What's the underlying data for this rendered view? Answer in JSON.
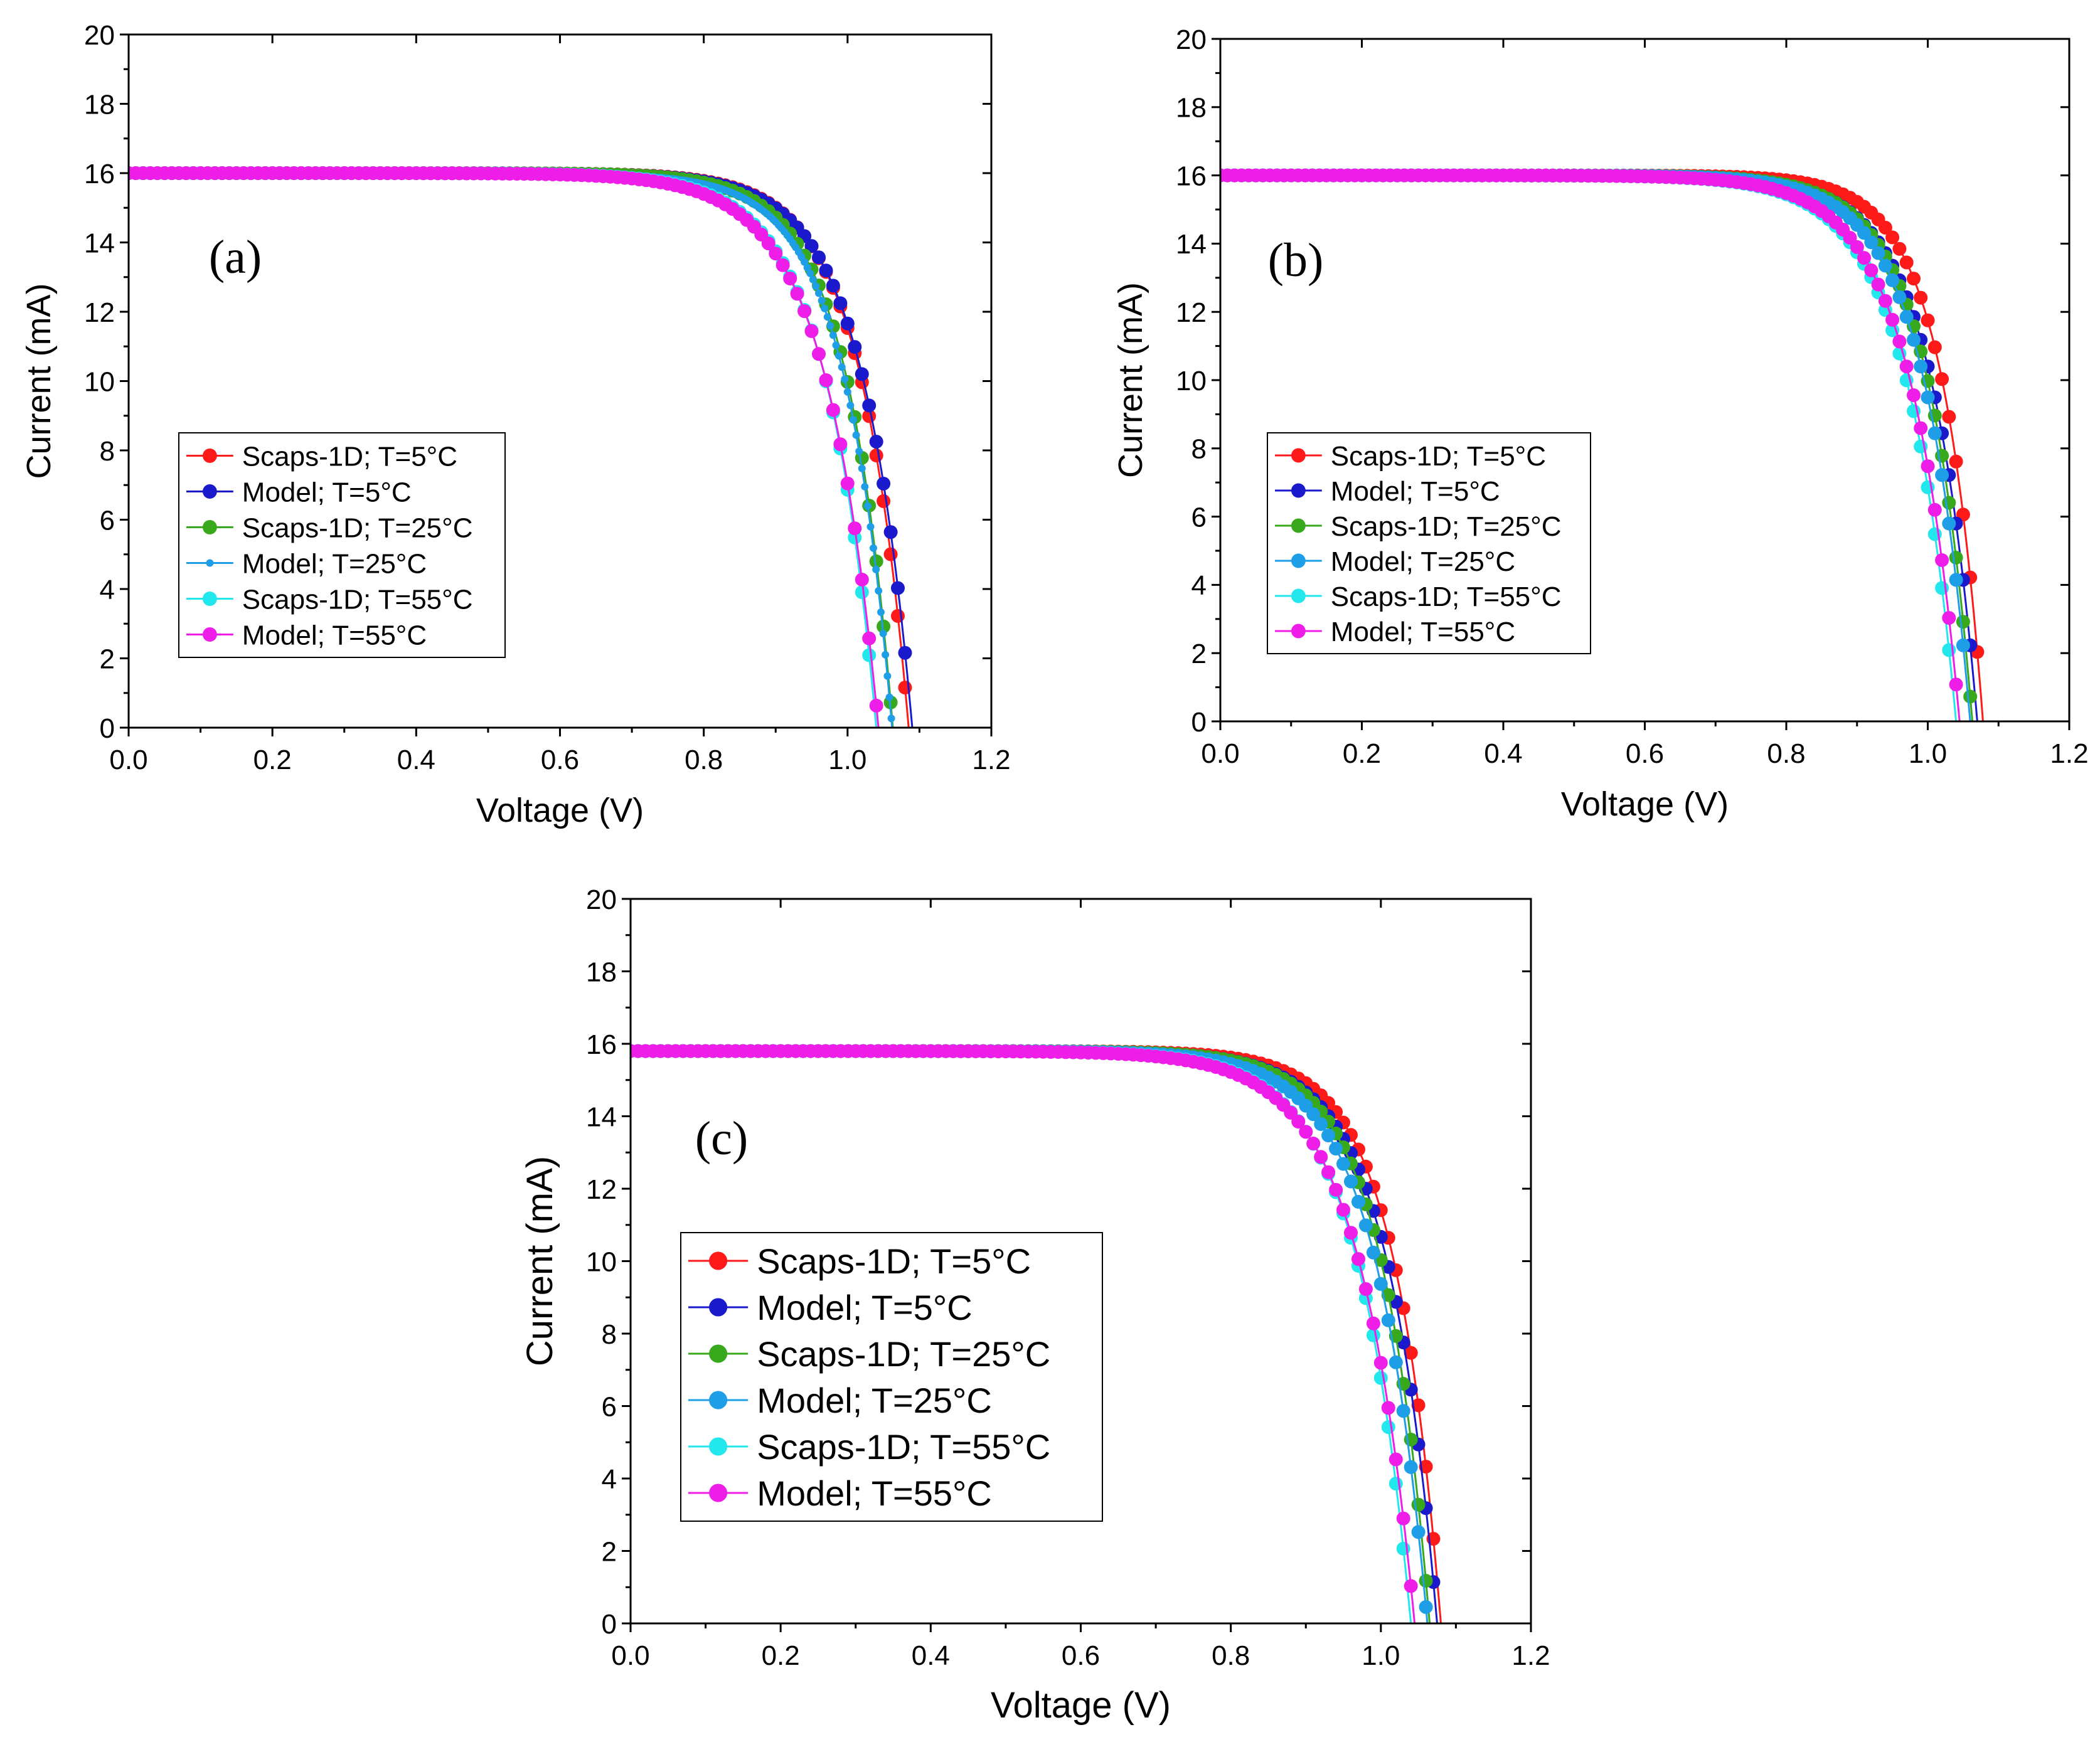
{
  "chart_data": [
    {
      "type": "line",
      "panel_label": "(a)",
      "xlabel": "Voltage (V)",
      "ylabel": "Current (mA)",
      "xlim": [
        0.0,
        1.2
      ],
      "ylim": [
        0,
        20
      ],
      "xticks": [
        "0.0",
        "0.2",
        "0.4",
        "0.6",
        "0.8",
        "1.0",
        "1.2"
      ],
      "yticks": [
        "0",
        "2",
        "4",
        "6",
        "8",
        "10",
        "12",
        "14",
        "16",
        "18",
        "20"
      ],
      "legend_position": "middle-left",
      "series": [
        {
          "name": "Scaps-1D; T=5°C",
          "color": "#ff1a1a",
          "marker": "large",
          "isc": 16.0,
          "voc": 1.085,
          "sharp": 15.0
        },
        {
          "name": "Model; T=5°C",
          "color": "#1a1acc",
          "marker": "large",
          "isc": 16.0,
          "voc": 1.09,
          "sharp": 14.5
        },
        {
          "name": "Scaps-1D; T=25°C",
          "color": "#38a81c",
          "marker": "large",
          "isc": 16.0,
          "voc": 1.063,
          "sharp": 15.5
        },
        {
          "name": "Model; T=25°C",
          "color": "#1e9ee6",
          "marker": "small",
          "isc": 16.0,
          "voc": 1.062,
          "sharp": 15.0
        },
        {
          "name": "Scaps-1D; T=55°C",
          "color": "#22e8ee",
          "marker": "large",
          "isc": 16.0,
          "voc": 1.04,
          "sharp": 14.0
        },
        {
          "name": "Model; T=55°C",
          "color": "#ee1ee8",
          "marker": "large",
          "isc": 16.0,
          "voc": 1.043,
          "sharp": 13.5
        }
      ]
    },
    {
      "type": "line",
      "panel_label": "(b)",
      "xlabel": "Voltage (V)",
      "ylabel": "Current (mA)",
      "xlim": [
        0.0,
        1.2
      ],
      "ylim": [
        0,
        20
      ],
      "xticks": [
        "0.0",
        "0.2",
        "0.4",
        "0.6",
        "0.8",
        "1.0",
        "1.2"
      ],
      "yticks": [
        "0",
        "2",
        "4",
        "6",
        "8",
        "10",
        "12",
        "14",
        "16",
        "18",
        "20"
      ],
      "legend_position": "middle-left",
      "series": [
        {
          "name": "Scaps-1D; T=5°C",
          "color": "#ff1a1a",
          "marker": "large",
          "isc": 16.0,
          "voc": 1.078,
          "sharp": 17.0
        },
        {
          "name": "Model; T=5°C",
          "color": "#1a1acc",
          "marker": "large",
          "isc": 16.0,
          "voc": 1.07,
          "sharp": 15.0
        },
        {
          "name": "Scaps-1D; T=25°C",
          "color": "#38a81c",
          "marker": "large",
          "isc": 16.0,
          "voc": 1.063,
          "sharp": 15.5
        },
        {
          "name": "Model; T=25°C",
          "color": "#1e9ee6",
          "marker": "large",
          "isc": 16.0,
          "voc": 1.06,
          "sharp": 15.0
        },
        {
          "name": "Scaps-1D; T=55°C",
          "color": "#22e8ee",
          "marker": "large",
          "isc": 16.0,
          "voc": 1.04,
          "sharp": 14.0
        },
        {
          "name": "Model; T=55°C",
          "color": "#ee1ee8",
          "marker": "large",
          "isc": 16.0,
          "voc": 1.045,
          "sharp": 14.0
        }
      ]
    },
    {
      "type": "line",
      "panel_label": "(c)",
      "xlabel": "Voltage (V)",
      "ylabel": "Current (mA)",
      "xlim": [
        0.0,
        1.2
      ],
      "ylim": [
        0,
        20
      ],
      "xticks": [
        "0.0",
        "0.2",
        "0.4",
        "0.6",
        "0.8",
        "1.0",
        "1.2"
      ],
      "yticks": [
        "0",
        "2",
        "4",
        "6",
        "8",
        "10",
        "12",
        "14",
        "16",
        "18",
        "20"
      ],
      "legend_position": "middle-left",
      "series": [
        {
          "name": "Scaps-1D; T=5°C",
          "color": "#ff1a1a",
          "marker": "large",
          "isc": 15.8,
          "voc": 1.08,
          "sharp": 16.0
        },
        {
          "name": "Model; T=5°C",
          "color": "#1a1acc",
          "marker": "large",
          "isc": 15.8,
          "voc": 1.075,
          "sharp": 15.0
        },
        {
          "name": "Scaps-1D; T=25°C",
          "color": "#38a81c",
          "marker": "large",
          "isc": 15.8,
          "voc": 1.065,
          "sharp": 15.5
        },
        {
          "name": "Model; T=25°C",
          "color": "#1e9ee6",
          "marker": "large",
          "isc": 15.8,
          "voc": 1.062,
          "sharp": 14.5
        },
        {
          "name": "Scaps-1D; T=55°C",
          "color": "#22e8ee",
          "marker": "large",
          "isc": 15.8,
          "voc": 1.04,
          "sharp": 14.0
        },
        {
          "name": "Model; T=55°C",
          "color": "#ee1ee8",
          "marker": "large",
          "isc": 15.8,
          "voc": 1.045,
          "sharp": 13.5
        }
      ]
    }
  ]
}
